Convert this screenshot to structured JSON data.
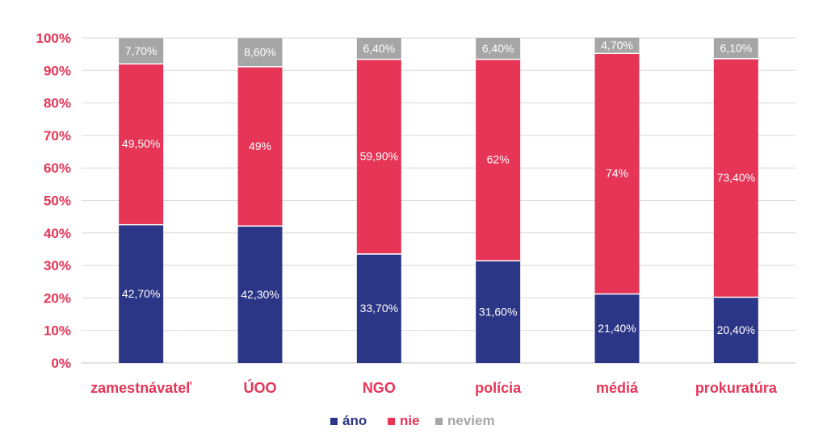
{
  "chart_data": {
    "type": "bar",
    "stacked": true,
    "categories": [
      "zamestnávateľ",
      "ÚOO",
      "NGO",
      "polícia",
      "médiá",
      "prokuratúra"
    ],
    "series": [
      {
        "name": "áno",
        "values": [
          42.7,
          42.3,
          33.7,
          31.6,
          21.4,
          20.4
        ],
        "labels": [
          "42,70%",
          "42,30%",
          "33,70%",
          "31,60%",
          "21,40%",
          "20,40%"
        ]
      },
      {
        "name": "nie",
        "values": [
          49.5,
          49,
          59.9,
          62,
          74,
          73.4
        ],
        "labels": [
          "49,50%",
          "49%",
          "59,90%",
          "62%",
          "74%",
          "73,40%"
        ]
      },
      {
        "name": "neviem",
        "values": [
          7.7,
          8.6,
          6.4,
          6.4,
          4.7,
          6.1
        ],
        "labels": [
          "7,70%",
          "8,60%",
          "6,40%",
          "6,40%",
          "4,70%",
          "6,10%"
        ]
      }
    ],
    "yticks": [
      "0%",
      "10%",
      "20%",
      "30%",
      "40%",
      "50%",
      "60%",
      "70%",
      "80%",
      "90%",
      "100%"
    ],
    "ylim": [
      0,
      100
    ],
    "grid": true,
    "legend_position": "bottom-center",
    "title": "",
    "xlabel": "",
    "ylabel": ""
  },
  "colors": {
    "ano": "#2c3686",
    "nie": "#e63557",
    "neviem": "#a6a6a6",
    "axis_text": "#e63557",
    "grid": "#d9d9d9"
  }
}
